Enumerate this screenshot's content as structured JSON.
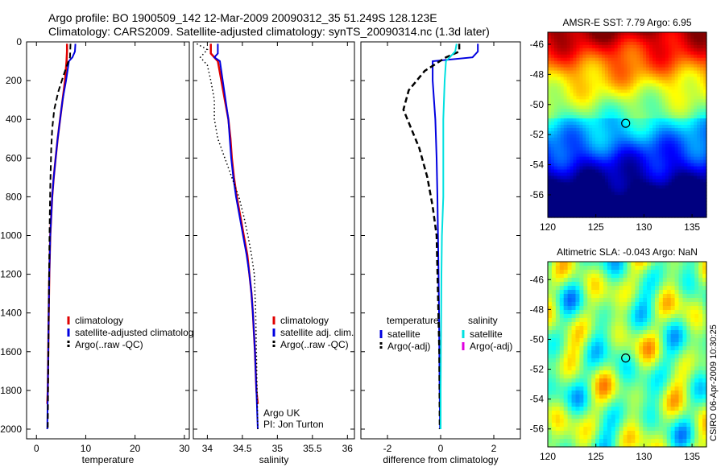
{
  "header": {
    "line1": "Argo profile: BO 1900509_142 12-Mar-2009 20090312_35 51.249S 128.123E",
    "line2": "Climatology: CARS2009. Satellite-adjusted climatology: synTS_20090314.nc (1.3d later)"
  },
  "stamp": "CSIRO 06-Apr-2009 10:30:25",
  "chart_data": [
    {
      "id": "temperature",
      "type": "line",
      "xlabel": "temperature",
      "ylabel": "",
      "xlim": [
        -2,
        31
      ],
      "ylim": [
        2050,
        0
      ],
      "xticks": [
        0,
        10,
        20,
        30
      ],
      "yticks": [
        0,
        200,
        400,
        600,
        800,
        1000,
        1200,
        1400,
        1600,
        1800,
        2000
      ],
      "series": [
        {
          "name": "climatology",
          "color": "#e00000",
          "style": "solid",
          "width": 2.5,
          "points": [
            [
              6.2,
              10
            ],
            [
              6.2,
              50
            ],
            [
              6.1,
              100
            ],
            [
              5.8,
              200
            ],
            [
              5.3,
              300
            ],
            [
              4.8,
              400
            ],
            [
              4.3,
              500
            ],
            [
              3.9,
              600
            ],
            [
              3.5,
              700
            ],
            [
              3.2,
              800
            ],
            [
              3.0,
              900
            ],
            [
              2.8,
              1000
            ],
            [
              2.6,
              1200
            ],
            [
              2.5,
              1400
            ],
            [
              2.4,
              1600
            ],
            [
              2.3,
              1800
            ],
            [
              2.2,
              1870
            ]
          ]
        },
        {
          "name": "satellite-adjusted climatology",
          "color": "#0000e0",
          "style": "solid",
          "width": 2,
          "points": [
            [
              7.9,
              10
            ],
            [
              7.8,
              50
            ],
            [
              7.3,
              80
            ],
            [
              6.6,
              100
            ],
            [
              6.0,
              200
            ],
            [
              5.3,
              300
            ],
            [
              4.8,
              400
            ],
            [
              4.3,
              500
            ],
            [
              3.9,
              600
            ],
            [
              3.5,
              700
            ],
            [
              3.2,
              800
            ],
            [
              3.0,
              900
            ],
            [
              2.8,
              1000
            ],
            [
              2.6,
              1200
            ],
            [
              2.5,
              1400
            ],
            [
              2.4,
              1600
            ],
            [
              2.3,
              1800
            ],
            [
              2.2,
              2000
            ]
          ]
        },
        {
          "name": "Argo(..raw -QC)",
          "color": "#000000",
          "style": "dashed",
          "width": 2,
          "points": [
            [
              6.9,
              10
            ],
            [
              6.8,
              80
            ],
            [
              6.2,
              120
            ],
            [
              5.4,
              180
            ],
            [
              4.4,
              260
            ],
            [
              3.6,
              350
            ],
            [
              3.2,
              450
            ],
            [
              3.0,
              550
            ],
            [
              2.9,
              650
            ],
            [
              2.8,
              750
            ],
            [
              2.7,
              900
            ],
            [
              2.6,
              1100
            ],
            [
              2.5,
              1400
            ],
            [
              2.4,
              1700
            ],
            [
              2.3,
              2000
            ]
          ]
        }
      ],
      "legend": [
        "climatology",
        "satellite-adjusted climatolog",
        "Argo(..raw -QC)"
      ]
    },
    {
      "id": "salinity",
      "type": "line",
      "xlabel": "salinity",
      "ylabel": "",
      "xlim": [
        33.8,
        36.1
      ],
      "ylim": [
        2050,
        0
      ],
      "xticks": [
        34,
        34.5,
        35,
        35.5,
        36
      ],
      "xtick_labels": [
        "34",
        "34.5",
        "35",
        "35.5",
        "36"
      ],
      "series": [
        {
          "name": "climatology",
          "color": "#e00000",
          "style": "solid",
          "width": 2.5,
          "points": [
            [
              34.05,
              10
            ],
            [
              34.05,
              60
            ],
            [
              34.15,
              100
            ],
            [
              34.2,
              200
            ],
            [
              34.25,
              300
            ],
            [
              34.3,
              400
            ],
            [
              34.33,
              500
            ],
            [
              34.35,
              600
            ],
            [
              34.38,
              700
            ],
            [
              34.42,
              800
            ],
            [
              34.47,
              900
            ],
            [
              34.52,
              1000
            ],
            [
              34.57,
              1100
            ],
            [
              34.6,
              1200
            ],
            [
              34.63,
              1300
            ],
            [
              34.65,
              1400
            ],
            [
              34.68,
              1600
            ],
            [
              34.7,
              1800
            ],
            [
              34.72,
              1870
            ]
          ]
        },
        {
          "name": "satellite adj. clim.",
          "color": "#0000e0",
          "style": "solid",
          "width": 2,
          "points": [
            [
              34.15,
              10
            ],
            [
              34.15,
              60
            ],
            [
              34.1,
              80
            ],
            [
              34.18,
              100
            ],
            [
              34.22,
              200
            ],
            [
              34.26,
              300
            ],
            [
              34.3,
              400
            ],
            [
              34.32,
              500
            ],
            [
              34.34,
              600
            ],
            [
              34.37,
              700
            ],
            [
              34.41,
              800
            ],
            [
              34.46,
              900
            ],
            [
              34.51,
              1000
            ],
            [
              34.56,
              1100
            ],
            [
              34.6,
              1200
            ],
            [
              34.63,
              1300
            ],
            [
              34.65,
              1400
            ],
            [
              34.68,
              1600
            ],
            [
              34.7,
              1800
            ],
            [
              34.72,
              2000
            ]
          ]
        },
        {
          "name": "Argo(..raw -QC)",
          "color": "#000000",
          "style": "dotted",
          "width": 1.5,
          "points": [
            [
              33.85,
              10
            ],
            [
              34.0,
              40
            ],
            [
              33.9,
              80
            ],
            [
              34.0,
              120
            ],
            [
              34.05,
              200
            ],
            [
              34.1,
              300
            ],
            [
              34.1,
              400
            ],
            [
              34.15,
              500
            ],
            [
              34.25,
              600
            ],
            [
              34.35,
              700
            ],
            [
              34.45,
              800
            ],
            [
              34.52,
              900
            ],
            [
              34.58,
              1000
            ],
            [
              34.63,
              1100
            ],
            [
              34.67,
              1200
            ],
            [
              34.68,
              1300
            ],
            [
              34.69,
              1400
            ],
            [
              34.7,
              1600
            ],
            [
              34.71,
              1800
            ],
            [
              34.72,
              2000
            ]
          ]
        }
      ],
      "legend": [
        "climatology",
        "satellite adj. clim.",
        "Argo(..raw -QC)"
      ],
      "annotation": [
        "Argo UK",
        "PI: Jon Turton"
      ]
    },
    {
      "id": "difference",
      "type": "line",
      "xlabel": "difference from climatology",
      "ylabel": "",
      "xlim": [
        -3,
        3
      ],
      "ylim": [
        2050,
        0
      ],
      "xticks": [
        -2,
        0,
        2
      ],
      "series": [
        {
          "name": "temperature satellite",
          "color": "#0000e0",
          "style": "solid",
          "width": 2,
          "points": [
            [
              1.4,
              10
            ],
            [
              1.4,
              50
            ],
            [
              1.2,
              80
            ],
            [
              -0.3,
              100
            ],
            [
              -0.3,
              200
            ],
            [
              -0.2,
              400
            ],
            [
              -0.15,
              600
            ],
            [
              -0.12,
              800
            ],
            [
              -0.1,
              1000
            ],
            [
              -0.08,
              1200
            ],
            [
              -0.06,
              1400
            ],
            [
              -0.05,
              1600
            ],
            [
              -0.04,
              1800
            ],
            [
              -0.02,
              2000
            ]
          ]
        },
        {
          "name": "temperature Argo(-adj)",
          "color": "#000000",
          "style": "dashed",
          "width": 2.5,
          "points": [
            [
              0.7,
              10
            ],
            [
              0.7,
              50
            ],
            [
              0.2,
              80
            ],
            [
              -0.6,
              150
            ],
            [
              -1.2,
              250
            ],
            [
              -1.4,
              350
            ],
            [
              -1.1,
              450
            ],
            [
              -0.8,
              550
            ],
            [
              -0.5,
              700
            ],
            [
              -0.3,
              850
            ],
            [
              -0.15,
              1000
            ],
            [
              -0.1,
              1300
            ],
            [
              -0.05,
              1600
            ],
            [
              -0.03,
              2000
            ]
          ]
        },
        {
          "name": "salinity satellite",
          "color": "#00e0e0",
          "style": "solid",
          "width": 2,
          "points": [
            [
              0.6,
              10
            ],
            [
              0.55,
              50
            ],
            [
              0.2,
              100
            ],
            [
              0.15,
              200
            ],
            [
              0.1,
              400
            ],
            [
              0.1,
              600
            ],
            [
              0.1,
              800
            ],
            [
              0.05,
              1000
            ],
            [
              0.03,
              1200
            ],
            [
              0.02,
              1400
            ],
            [
              0.01,
              1600
            ],
            [
              0.0,
              1800
            ],
            [
              0.0,
              2000
            ]
          ]
        },
        {
          "name": "salinity Argo(-adj)",
          "color": "#e000e0",
          "style": "solid",
          "width": 1.5,
          "points": []
        }
      ],
      "legend_left": {
        "heading": "temperature",
        "items": [
          "satellite",
          "Argo(-adj)"
        ]
      },
      "legend_right": {
        "heading": "salinity",
        "items": [
          "satellite",
          "Argo(-adj)"
        ]
      }
    },
    {
      "id": "sst-map",
      "type": "heatmap",
      "title": "AMSR-E SST: 7.79  Argo: 6.95",
      "xlim": [
        120,
        136.5
      ],
      "ylim": [
        -57.5,
        -45.2
      ],
      "xticks": [
        120,
        125,
        130,
        135
      ],
      "yticks": [
        -46,
        -48,
        -50,
        -52,
        -54,
        -56
      ],
      "marker": [
        128.1,
        -51.25
      ]
    },
    {
      "id": "sla-map",
      "type": "heatmap",
      "title": "Altimetric SLA: -0.043  Argo: NaN",
      "xlim": [
        120,
        136.5
      ],
      "ylim": [
        -57.2,
        -44.8
      ],
      "xticks": [
        120,
        125,
        130,
        135
      ],
      "yticks": [
        -46,
        -48,
        -50,
        -52,
        -54,
        -56
      ],
      "marker": [
        128.1,
        -51.25
      ]
    }
  ]
}
